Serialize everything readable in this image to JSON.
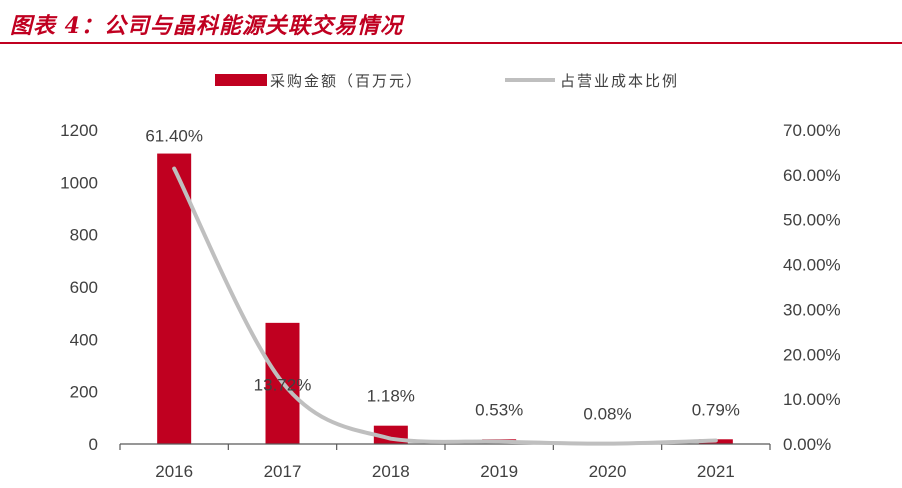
{
  "header": {
    "title": "图表 4：公司与晶科能源关联交易情况"
  },
  "colors": {
    "accent": "#c00020",
    "bar": "#c00020",
    "line": "#bfbfbf",
    "axis": "#595959"
  },
  "chart_data": {
    "type": "bar",
    "categories": [
      "2016",
      "2017",
      "2018",
      "2019",
      "2020",
      "2021"
    ],
    "series": [
      {
        "name": "采购金额（百万元）",
        "type": "bar",
        "axis": "left",
        "values": [
          1110,
          463,
          70,
          18,
          2,
          18
        ]
      },
      {
        "name": "占营业成本比例",
        "type": "line",
        "axis": "right",
        "values": [
          61.4,
          13.72,
          1.18,
          0.53,
          0.08,
          0.79
        ]
      }
    ],
    "data_labels": [
      "61.40%",
      "13.72%",
      "1.18%",
      "0.53%",
      "0.08%",
      "0.79%"
    ],
    "y_left": {
      "ylim": [
        0,
        1200
      ],
      "ticks": [
        "0",
        "200",
        "400",
        "600",
        "800",
        "1000",
        "1200"
      ]
    },
    "y_right": {
      "ylim": [
        0,
        70
      ],
      "ticks": [
        "0.00%",
        "10.00%",
        "20.00%",
        "30.00%",
        "40.00%",
        "50.00%",
        "60.00%",
        "70.00%"
      ]
    },
    "legend": "top",
    "grid": false
  }
}
